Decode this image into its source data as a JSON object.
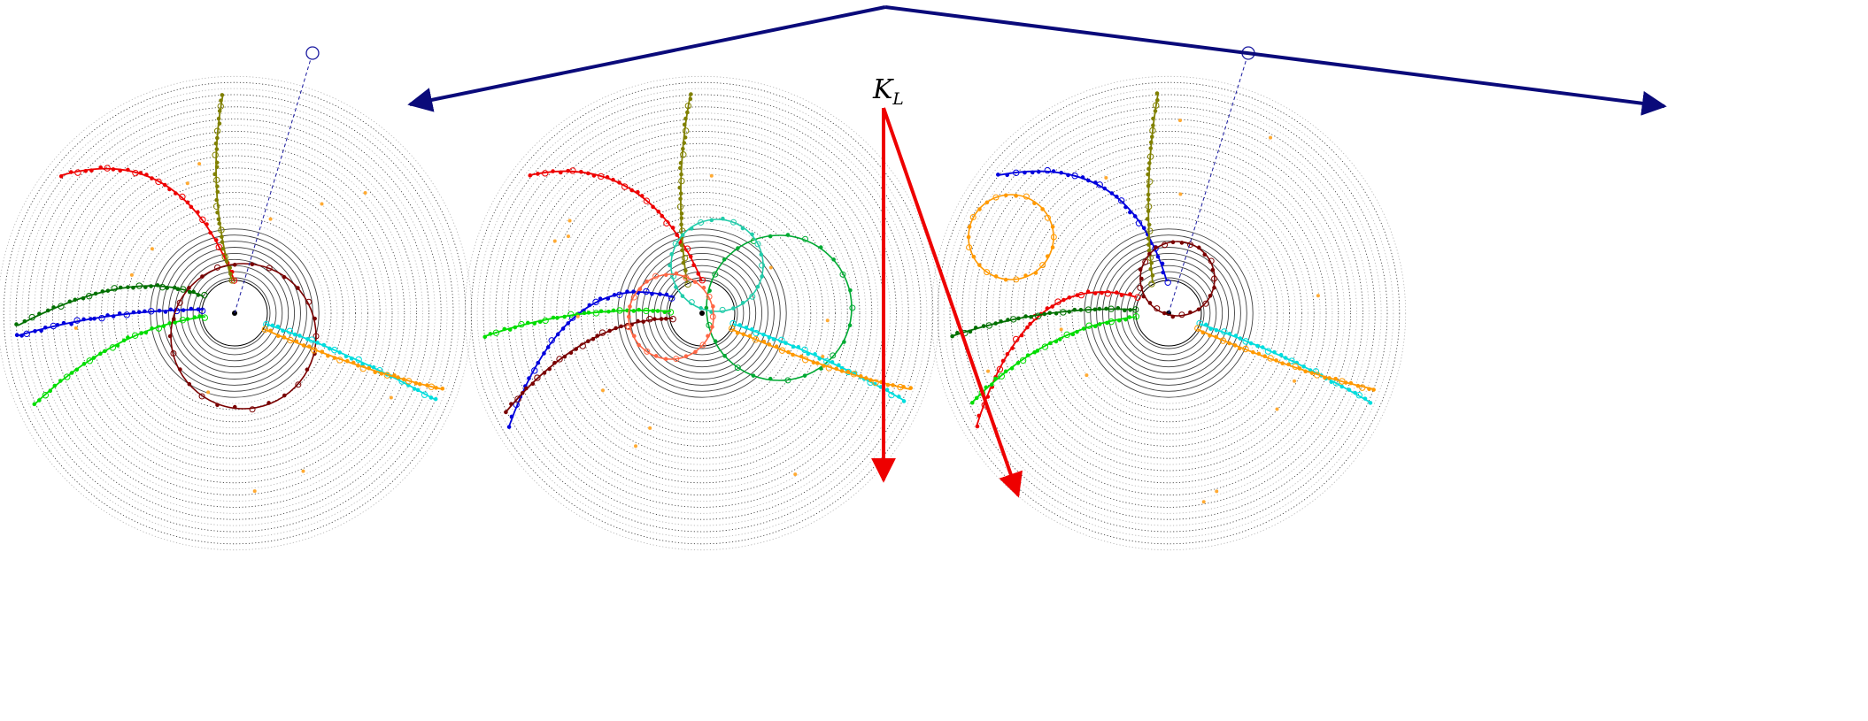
{
  "annotation": {
    "symbol": "K",
    "subscript": "L"
  },
  "colors": {
    "ring_dark": "#000000",
    "ring_light": "#9a9a9a",
    "pointer": "#0a0a7a",
    "kl_arrow": "#ee0000",
    "beam": "#1a1aa0"
  },
  "panels": [
    {
      "name": "left-panel",
      "tracks": [
        {
          "name": "red",
          "color": "#ee0000",
          "type": "curve",
          "p": [
            [
              265,
              318
            ],
            [
              205,
              160
            ],
            [
              70,
              198
            ]
          ]
        },
        {
          "name": "olive",
          "color": "#808000",
          "type": "curve",
          "p": [
            [
              262,
              318
            ],
            [
              232,
              210
            ],
            [
              252,
              106
            ]
          ]
        },
        {
          "name": "dark-green",
          "color": "#007000",
          "type": "curve",
          "p": [
            [
              230,
              335
            ],
            [
              150,
              300
            ],
            [
              20,
              368
            ]
          ]
        },
        {
          "name": "blue",
          "color": "#0000dd",
          "type": "curve",
          "p": [
            [
              230,
              350
            ],
            [
              120,
              350
            ],
            [
              18,
              380
            ]
          ]
        },
        {
          "name": "lime",
          "color": "#00dd00",
          "type": "curve",
          "p": [
            [
              232,
              358
            ],
            [
              130,
              370
            ],
            [
              38,
              458
            ]
          ]
        },
        {
          "name": "maroon",
          "color": "#7a0000",
          "type": "circle",
          "c": [
            275,
            380
          ],
          "r": 82
        },
        {
          "name": "cyan",
          "color": "#00dddd",
          "type": "curve",
          "p": [
            [
              300,
              366
            ],
            [
              400,
              400
            ],
            [
              492,
              452
            ]
          ]
        },
        {
          "name": "orange",
          "color": "#ff9900",
          "type": "curve",
          "p": [
            [
              298,
              372
            ],
            [
              410,
              420
            ],
            [
              500,
              440
            ]
          ]
        }
      ],
      "beam": true
    },
    {
      "name": "middle-panel",
      "tracks": [
        {
          "name": "red",
          "color": "#ee0000",
          "type": "curve",
          "p": [
            [
              793,
              318
            ],
            [
              730,
              170
            ],
            [
              598,
              198
            ]
          ]
        },
        {
          "name": "olive",
          "color": "#808000",
          "type": "curve",
          "p": [
            [
              776,
              320
            ],
            [
              760,
              210
            ],
            [
              780,
              106
            ]
          ]
        },
        {
          "name": "blue",
          "color": "#0000dd",
          "type": "curve",
          "p": [
            [
              760,
              336
            ],
            [
              640,
              300
            ],
            [
              575,
              482
            ]
          ]
        },
        {
          "name": "lime",
          "color": "#00dd00",
          "type": "curve",
          "p": [
            [
              758,
              352
            ],
            [
              650,
              345
            ],
            [
              548,
              380
            ]
          ]
        },
        {
          "name": "maroon",
          "color": "#7a0000",
          "type": "curve",
          "p": [
            [
              760,
              360
            ],
            [
              660,
              360
            ],
            [
              572,
              465
            ]
          ]
        },
        {
          "name": "green",
          "color": "#00aa33",
          "type": "circle",
          "c": [
            880,
            348
          ],
          "r": 82
        },
        {
          "name": "teal",
          "color": "#22ccaa",
          "type": "circle",
          "c": [
            810,
            300
          ],
          "r": 52
        },
        {
          "name": "salmon",
          "color": "#ff6644",
          "type": "circle",
          "c": [
            758,
            358
          ],
          "r": 48
        },
        {
          "name": "cyan",
          "color": "#00dddd",
          "type": "curve",
          "p": [
            [
              828,
              366
            ],
            [
              930,
              400
            ],
            [
              1020,
              452
            ]
          ]
        },
        {
          "name": "orange",
          "color": "#ff9900",
          "type": "curve",
          "p": [
            [
              826,
              372
            ],
            [
              935,
              420
            ],
            [
              1028,
              440
            ]
          ]
        }
      ],
      "beam": false
    },
    {
      "name": "right-panel",
      "tracks": [
        {
          "name": "blue",
          "color": "#0000dd",
          "type": "curve",
          "p": [
            [
              1318,
              318
            ],
            [
              1275,
              170
            ],
            [
              1128,
              198
            ]
          ]
        },
        {
          "name": "olive",
          "color": "#808000",
          "type": "curve",
          "p": [
            [
              1302,
              320
            ],
            [
              1290,
              210
            ],
            [
              1308,
              106
            ]
          ]
        },
        {
          "name": "maroon",
          "color": "#7a0000",
          "type": "circle",
          "c": [
            1330,
            315
          ],
          "r": 42
        },
        {
          "name": "orange-ring",
          "color": "#ff9900",
          "type": "circle",
          "c": [
            1142,
            268
          ],
          "r": 48
        },
        {
          "name": "red",
          "color": "#ee0000",
          "type": "curve",
          "p": [
            [
              1284,
              336
            ],
            [
              1160,
              300
            ],
            [
              1103,
              482
            ]
          ]
        },
        {
          "name": "dark-green",
          "color": "#007000",
          "type": "curve",
          "p": [
            [
              1284,
              350
            ],
            [
              1180,
              345
            ],
            [
              1075,
              380
            ]
          ]
        },
        {
          "name": "lime",
          "color": "#00dd00",
          "type": "curve",
          "p": [
            [
              1284,
              358
            ],
            [
              1180,
              370
            ],
            [
              1098,
              455
            ]
          ]
        },
        {
          "name": "cyan",
          "color": "#00dddd",
          "type": "curve",
          "p": [
            [
              1355,
              366
            ],
            [
              1455,
              400
            ],
            [
              1548,
              455
            ]
          ]
        },
        {
          "name": "orange",
          "color": "#ff9900",
          "type": "curve",
          "p": [
            [
              1352,
              372
            ],
            [
              1460,
              420
            ],
            [
              1552,
              440
            ]
          ]
        }
      ],
      "beam": true
    }
  ]
}
